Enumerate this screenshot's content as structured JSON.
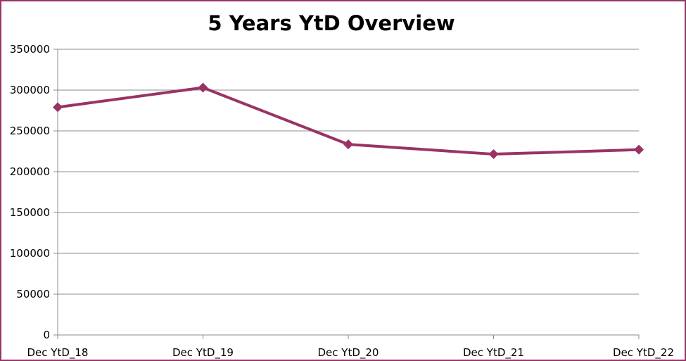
{
  "chart_data": {
    "type": "line",
    "title": "5 Years YtD Overview",
    "xlabel": "",
    "ylabel": "",
    "categories": [
      "Dec YtD_18",
      "Dec YtD_19",
      "Dec YtD_20",
      "Dec YtD_21",
      "Dec YtD_22"
    ],
    "series": [
      {
        "values": [
          279000,
          303000,
          233500,
          221500,
          227000
        ]
      }
    ],
    "ylim": [
      0,
      350000
    ],
    "yticks": [
      "0",
      "50000",
      "100000",
      "150000",
      "200000",
      "250000",
      "300000",
      "350000"
    ],
    "grid": true,
    "legend": "none",
    "colors": {
      "line": "#993366",
      "grid": "#8c8c8c",
      "axis": "#8c8c8c",
      "frame": "#993366"
    }
  }
}
